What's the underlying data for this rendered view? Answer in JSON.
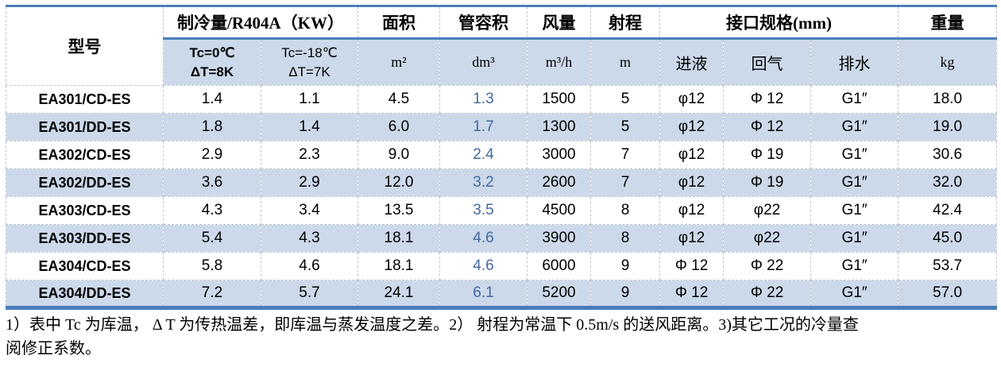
{
  "colors": {
    "accent_border_blue": "#4a7cba",
    "band_row_bg": "#ccd9ea",
    "tube_volume_text_blue": "#44699e",
    "grid_dash_gray": "#c2c6cb"
  },
  "table": {
    "header": {
      "model": "型号",
      "cooling_group": "制冷量/R404A（KW）",
      "cooling_sub1_line1": "Tc=0℃",
      "cooling_sub1_line2": "ΔT=8K",
      "cooling_sub2_line1": "Tc=-18℃",
      "cooling_sub2_line2": "ΔT=7K",
      "area": "面积",
      "area_unit": "m²",
      "tube_volume": "管容积",
      "tube_volume_unit": "dm³",
      "air_flow": "风量",
      "air_flow_unit": "m³/h",
      "throw": "射程",
      "throw_unit": "m",
      "connection_group": "接口规格(mm)",
      "liquid_in": "进液",
      "gas_return": "回气",
      "drain": "排水",
      "weight": "重量",
      "weight_unit": "kg"
    },
    "rows": [
      {
        "model": "EA301/CD-ES",
        "cooling_0c": "1.4",
        "cooling_m18c": "1.1",
        "area": "4.5",
        "tube_volume": "1.3",
        "air_flow": "1500",
        "throw": "5",
        "liquid_in": "φ12",
        "gas_return": "Φ 12",
        "drain": "G1″",
        "weight": "18.0"
      },
      {
        "model": "EA301/DD-ES",
        "cooling_0c": "1.8",
        "cooling_m18c": "1.4",
        "area": "6.0",
        "tube_volume": "1.7",
        "air_flow": "1300",
        "throw": "5",
        "liquid_in": "φ12",
        "gas_return": "Φ 12",
        "drain": "G1″",
        "weight": "19.0"
      },
      {
        "model": "EA302/CD-ES",
        "cooling_0c": "2.9",
        "cooling_m18c": "2.3",
        "area": "9.0",
        "tube_volume": "2.4",
        "air_flow": "3000",
        "throw": "7",
        "liquid_in": "φ12",
        "gas_return": "Φ 19",
        "drain": "G1″",
        "weight": "30.6"
      },
      {
        "model": "EA302/DD-ES",
        "cooling_0c": "3.6",
        "cooling_m18c": "2.9",
        "area": "12.0",
        "tube_volume": "3.2",
        "air_flow": "2600",
        "throw": "7",
        "liquid_in": "φ12",
        "gas_return": "Φ 19",
        "drain": "G1″",
        "weight": "32.0"
      },
      {
        "model": "EA303/CD-ES",
        "cooling_0c": "4.3",
        "cooling_m18c": "3.4",
        "area": "13.5",
        "tube_volume": "3.5",
        "air_flow": "4500",
        "throw": "8",
        "liquid_in": "φ12",
        "gas_return": "φ22",
        "drain": "G1″",
        "weight": "42.4"
      },
      {
        "model": "EA303/DD-ES",
        "cooling_0c": "5.4",
        "cooling_m18c": "4.3",
        "area": "18.1",
        "tube_volume": "4.6",
        "air_flow": "3900",
        "throw": "8",
        "liquid_in": "φ12",
        "gas_return": "φ22",
        "drain": "G1″",
        "weight": "45.0"
      },
      {
        "model": "EA304/CD-ES",
        "cooling_0c": "5.8",
        "cooling_m18c": "4.6",
        "area": "18.1",
        "tube_volume": "4.6",
        "air_flow": "6000",
        "throw": "9",
        "liquid_in": "Φ 12",
        "gas_return": "Φ 22",
        "drain": "G1″",
        "weight": "53.7"
      },
      {
        "model": "EA304/DD-ES",
        "cooling_0c": "7.2",
        "cooling_m18c": "5.7",
        "area": "24.1",
        "tube_volume": "6.1",
        "air_flow": "5200",
        "throw": "9",
        "liquid_in": "Φ 12",
        "gas_return": "Φ 22",
        "drain": "G1″",
        "weight": "57.0"
      }
    ]
  },
  "notes": {
    "lines": [
      "1）表中 Tc 为库温， Δ T 为传热温差，即库温与蒸发温度之差。2） 射程为常温下 0.5m/s 的送风距离。3)其它工况的冷量查",
      "阅修正系数。"
    ]
  }
}
